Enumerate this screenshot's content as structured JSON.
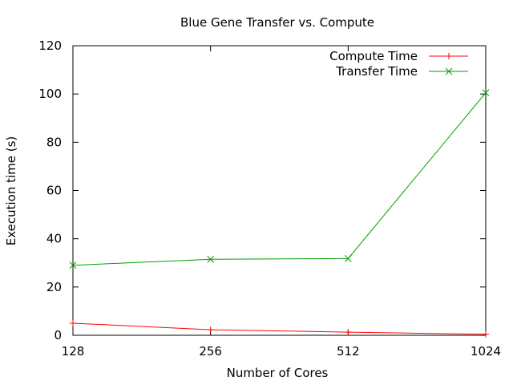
{
  "chart_data": {
    "type": "line",
    "title": "Blue Gene Transfer vs. Compute",
    "xlabel": "Number of Cores",
    "ylabel": "Execution time (s)",
    "x_scale": "log2",
    "categories": [
      "128",
      "256",
      "512",
      "1024"
    ],
    "ylim": [
      0,
      120
    ],
    "yticks": [
      0,
      20,
      40,
      60,
      80,
      100,
      120
    ],
    "grid": false,
    "legend_position": "top-right",
    "series": [
      {
        "name": "Compute Time",
        "color": "#ff0000",
        "marker": "plus",
        "values": [
          5.0,
          2.3,
          1.3,
          0.4
        ]
      },
      {
        "name": "Transfer Time",
        "color": "#00a000",
        "marker": "cross",
        "values": [
          29.0,
          31.5,
          31.8,
          100.5
        ]
      }
    ]
  }
}
